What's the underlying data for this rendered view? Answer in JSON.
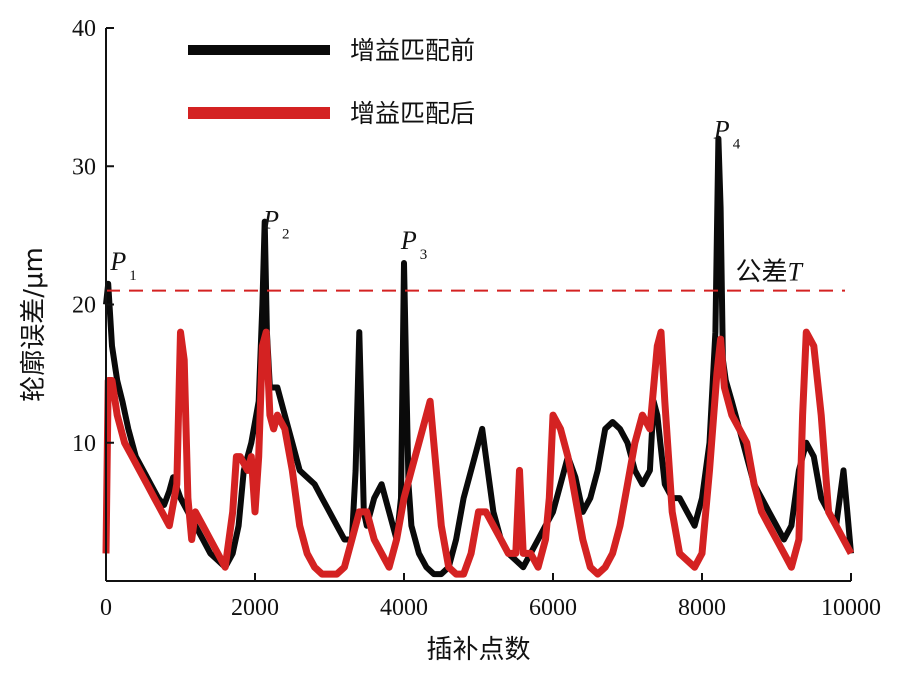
{
  "chart_data": {
    "type": "line",
    "xlabel": "插补点数",
    "ylabel": "轮廓误差/μm",
    "xlim": [
      0,
      10000
    ],
    "ylim": [
      0,
      40
    ],
    "xticks": [
      "0",
      "2000",
      "4000",
      "6000",
      "8000",
      "10000"
    ],
    "yticks": [
      "10",
      "20",
      "30",
      "40"
    ],
    "grid": false,
    "legend_position": "top-left",
    "series": [
      {
        "name": "增益匹配前",
        "color": "#0a0a0a",
        "x": [
          0,
          30,
          80,
          150,
          220,
          300,
          400,
          500,
          600,
          700,
          780,
          850,
          900,
          1000,
          1100,
          1200,
          1300,
          1400,
          1500,
          1600,
          1700,
          1780,
          1850,
          1950,
          2050,
          2100,
          2130,
          2160,
          2200,
          2300,
          2400,
          2500,
          2600,
          2700,
          2800,
          2900,
          3000,
          3100,
          3200,
          3300,
          3350,
          3400,
          3430,
          3460,
          3500,
          3600,
          3700,
          3800,
          3900,
          3960,
          4000,
          4030,
          4060,
          4100,
          4200,
          4300,
          4400,
          4500,
          4600,
          4700,
          4800,
          4900,
          5000,
          5050,
          5100,
          5200,
          5300,
          5400,
          5500,
          5600,
          5700,
          5800,
          5900,
          6000,
          6100,
          6200,
          6300,
          6400,
          6500,
          6600,
          6700,
          6800,
          6900,
          7000,
          7100,
          7200,
          7300,
          7350,
          7400,
          7500,
          7600,
          7700,
          7800,
          7900,
          8000,
          8100,
          8180,
          8220,
          8250,
          8280,
          8320,
          8400,
          8500,
          8600,
          8700,
          8800,
          8900,
          9000,
          9100,
          9200,
          9300,
          9400,
          9500,
          9600,
          9700,
          9800,
          9850,
          9900,
          9950,
          10000
        ],
        "values": [
          20,
          21.5,
          17,
          14.5,
          13,
          11,
          9,
          8,
          7,
          6,
          5.5,
          6.5,
          7.5,
          6,
          5,
          4,
          3,
          2,
          1.5,
          1,
          2,
          4,
          8,
          10,
          13,
          20,
          26,
          18,
          14,
          14,
          12,
          10,
          8,
          7.5,
          7,
          6,
          5,
          4,
          3,
          3,
          8,
          18,
          12,
          5,
          4,
          6,
          7,
          5,
          3,
          6,
          23,
          15,
          7,
          4,
          2,
          1,
          0.5,
          0.5,
          1,
          3,
          6,
          8,
          10,
          11,
          9,
          5,
          3,
          2,
          1.5,
          1,
          2,
          3,
          4,
          5,
          7,
          9,
          7.5,
          5,
          6,
          8,
          11,
          11.5,
          11,
          10,
          8,
          7,
          8,
          13,
          12,
          7,
          6,
          6,
          5,
          4,
          6,
          10,
          18,
          32,
          27,
          16,
          14.5,
          13,
          11,
          9,
          7,
          6,
          5,
          4,
          3,
          4,
          8,
          10,
          9,
          6,
          5,
          4,
          6,
          8,
          5,
          2
        ]
      },
      {
        "name": "增益匹配后",
        "color": "#d42222",
        "x": [
          0,
          30,
          80,
          150,
          250,
          350,
          450,
          550,
          650,
          750,
          850,
          950,
          1000,
          1050,
          1100,
          1150,
          1200,
          1300,
          1400,
          1500,
          1600,
          1700,
          1750,
          1800,
          1900,
          1950,
          2000,
          2050,
          2100,
          2150,
          2200,
          2250,
          2300,
          2400,
          2500,
          2600,
          2700,
          2800,
          2900,
          3000,
          3100,
          3200,
          3300,
          3400,
          3500,
          3550,
          3600,
          3700,
          3800,
          3900,
          4000,
          4100,
          4200,
          4300,
          4350,
          4400,
          4500,
          4600,
          4700,
          4800,
          4900,
          5000,
          5100,
          5200,
          5300,
          5400,
          5500,
          5550,
          5600,
          5700,
          5800,
          5900,
          5950,
          6000,
          6100,
          6200,
          6300,
          6400,
          6500,
          6600,
          6700,
          6800,
          6900,
          7000,
          7100,
          7200,
          7300,
          7400,
          7450,
          7500,
          7600,
          7700,
          7800,
          7900,
          8000,
          8100,
          8200,
          8250,
          8300,
          8400,
          8500,
          8600,
          8700,
          8800,
          8900,
          9000,
          9100,
          9200,
          9300,
          9350,
          9400,
          9500,
          9600,
          9700,
          9800,
          9900,
          10000
        ],
        "values": [
          2,
          14.5,
          14.5,
          12,
          10,
          9,
          8,
          7,
          6,
          5,
          4,
          7,
          18,
          16,
          6,
          3,
          5,
          4,
          3,
          2,
          1,
          5,
          9,
          9,
          8,
          9,
          5,
          9,
          17,
          18,
          12,
          11,
          12,
          11,
          8,
          4,
          2,
          1,
          0.5,
          0.5,
          0.5,
          1,
          3,
          5,
          5,
          4,
          3,
          2,
          1,
          3,
          6,
          8,
          10,
          12,
          13,
          10,
          4,
          1,
          0.5,
          0.5,
          2,
          5,
          5,
          4,
          3,
          2,
          2,
          8,
          2,
          2,
          1,
          3,
          6,
          12,
          11,
          9,
          6,
          3,
          1,
          0.5,
          1,
          2,
          4,
          7,
          10,
          12,
          11,
          17,
          18,
          13,
          5,
          2,
          1.5,
          1,
          2,
          8,
          15,
          17.5,
          14,
          12,
          11,
          10,
          7,
          5,
          4,
          3,
          2,
          1,
          3,
          12,
          18,
          17,
          12,
          5,
          4,
          3,
          2
        ]
      }
    ],
    "tolerance": {
      "value": 21,
      "label": "公差",
      "label_italic": "T",
      "color": "#d42222"
    },
    "annotations": [
      {
        "letter": "P",
        "sub": "1",
        "x": 300,
        "y": 22.5
      },
      {
        "letter": "P",
        "sub": "2",
        "x": 2350,
        "y": 25.5
      },
      {
        "letter": "P",
        "sub": "3",
        "x": 4200,
        "y": 24.0
      },
      {
        "letter": "P",
        "sub": "4",
        "x": 8400,
        "y": 32.0
      }
    ]
  }
}
